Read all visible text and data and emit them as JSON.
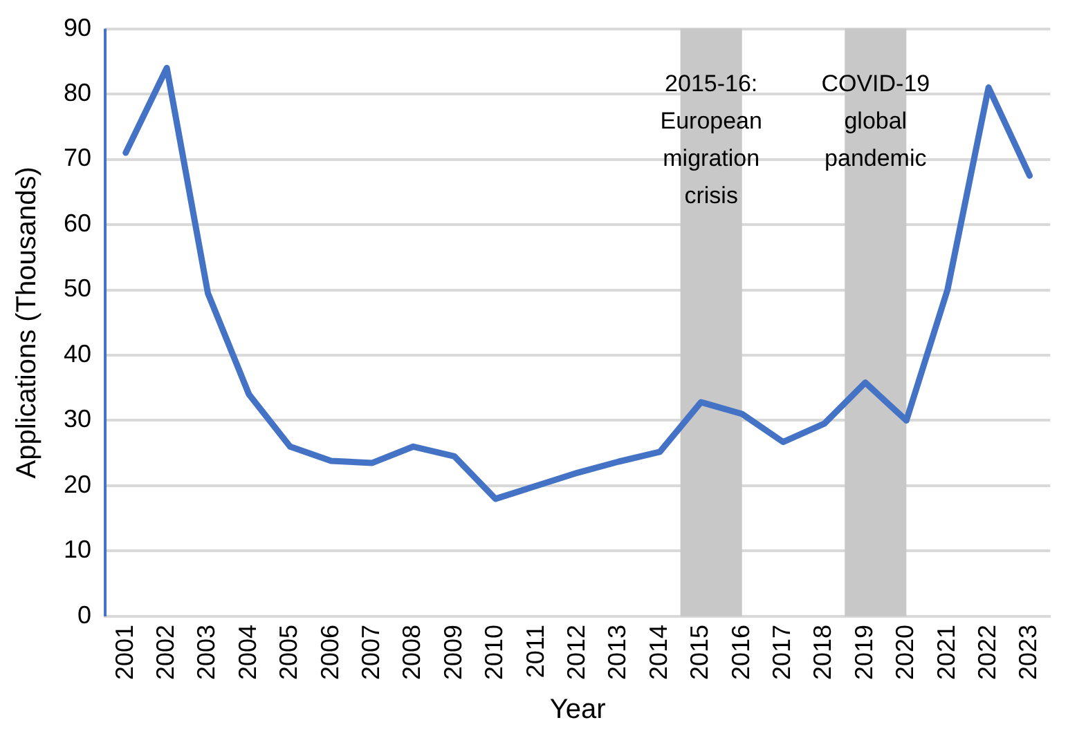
{
  "chart_data": {
    "type": "line",
    "xlabel": "Year",
    "ylabel": "Applications (Thousands)",
    "categories": [
      "2001",
      "2002",
      "2003",
      "2004",
      "2005",
      "2006",
      "2007",
      "2008",
      "2009",
      "2010",
      "2011",
      "2012",
      "2013",
      "2014",
      "2015",
      "2016",
      "2017",
      "2018",
      "2019",
      "2020",
      "2021",
      "2022",
      "2023"
    ],
    "series": [
      {
        "color": "#4472c4",
        "values": [
          71,
          84,
          49.5,
          34,
          26,
          23.8,
          23.5,
          26,
          24.5,
          18,
          20,
          22,
          23.7,
          25.2,
          32.8,
          31,
          26.7,
          29.5,
          35.8,
          30,
          50,
          81,
          67.5
        ]
      }
    ],
    "ylim": [
      0,
      90
    ],
    "yticks": [
      0,
      10,
      20,
      30,
      40,
      50,
      60,
      70,
      80,
      90
    ],
    "grid": "y",
    "legend": false,
    "marker": "none",
    "line_style": "solid",
    "bands": [
      {
        "axis": "x",
        "from": "2015",
        "to": "2016",
        "label": "2015-16: European migration crisis",
        "color": "#c8c8c8"
      },
      {
        "axis": "x",
        "from": "2019",
        "to": "2020",
        "label": "COVID-19 global pandemic",
        "color": "#c8c8c8"
      }
    ]
  }
}
